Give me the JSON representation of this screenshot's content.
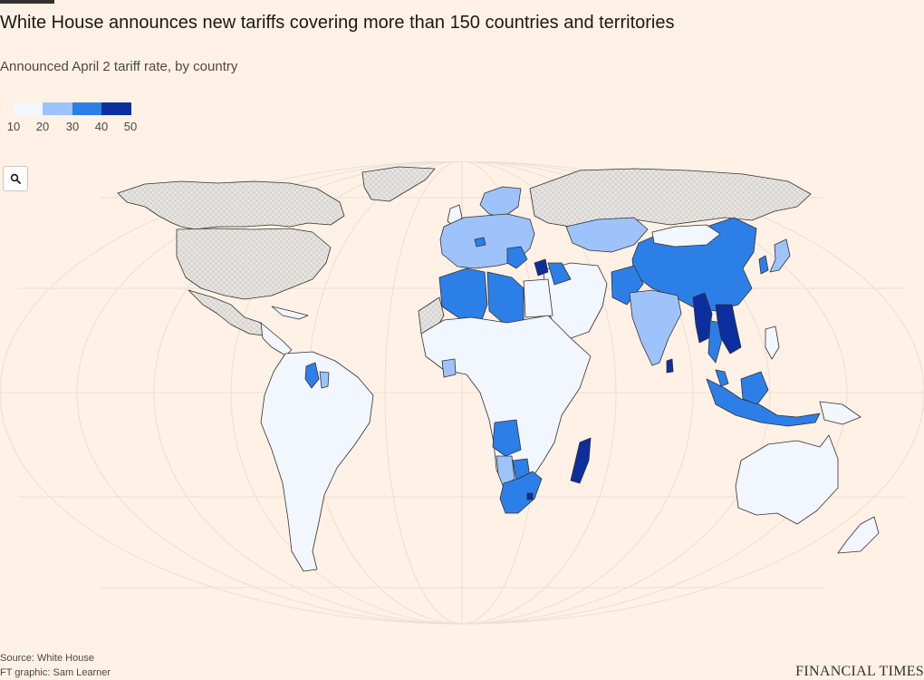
{
  "header": {
    "title": "White House announces new tariffs covering more than 150 countries and territories",
    "subtitle": "Announced April 2 tariff rate, by country"
  },
  "legend": {
    "ticks": [
      "10",
      "20",
      "30",
      "40",
      "50"
    ],
    "colors": [
      "#f2f6fe",
      "#9ec3fa",
      "#2d7fe8",
      "#0c2f9f"
    ]
  },
  "map": {
    "zoom_button_icon": "search-icon",
    "colors": {
      "background": "#fff1e5",
      "ocean": "#fff1e5",
      "no_data_hatch": "#e6e4e2",
      "no_data_dots": "#d6d3cf",
      "border": "#33302e",
      "graticule": "#e9dfd5"
    }
  },
  "chart_data": {
    "type": "choropleth",
    "title": "White House announces new tariffs covering more than 150 countries and territories",
    "subtitle": "Announced April 2 tariff rate, by country",
    "scale": {
      "bins": [
        10,
        20,
        30,
        40,
        50
      ]
    },
    "regions": [
      {
        "name": "United States",
        "value": null
      },
      {
        "name": "Canada",
        "value": null
      },
      {
        "name": "Mexico",
        "value": null
      },
      {
        "name": "Russia",
        "value": null
      },
      {
        "name": "Greenland",
        "value": null
      },
      {
        "name": "South America",
        "value": 10
      },
      {
        "name": "Guyana",
        "value": 38
      },
      {
        "name": "European Union",
        "value": 20
      },
      {
        "name": "United Kingdom",
        "value": 10
      },
      {
        "name": "Switzerland",
        "value": 31
      },
      {
        "name": "Serbia",
        "value": 37
      },
      {
        "name": "Kazakhstan",
        "value": 27
      },
      {
        "name": "China",
        "value": 34
      },
      {
        "name": "Japan",
        "value": 24
      },
      {
        "name": "South Korea",
        "value": 25
      },
      {
        "name": "India",
        "value": 26
      },
      {
        "name": "Pakistan",
        "value": 29
      },
      {
        "name": "Bangladesh",
        "value": 37
      },
      {
        "name": "Sri Lanka",
        "value": 44
      },
      {
        "name": "Myanmar",
        "value": 44
      },
      {
        "name": "Laos",
        "value": 48
      },
      {
        "name": "Vietnam",
        "value": 46
      },
      {
        "name": "Cambodia",
        "value": 49
      },
      {
        "name": "Thailand",
        "value": 36
      },
      {
        "name": "Malaysia",
        "value": 24
      },
      {
        "name": "Indonesia",
        "value": 32
      },
      {
        "name": "Philippines",
        "value": 17
      },
      {
        "name": "Syria",
        "value": 41
      },
      {
        "name": "Iraq",
        "value": 39
      },
      {
        "name": "Jordan",
        "value": 20
      },
      {
        "name": "Algeria",
        "value": 30
      },
      {
        "name": "Libya",
        "value": 31
      },
      {
        "name": "Tunisia",
        "value": 28
      },
      {
        "name": "Côte d'Ivoire",
        "value": 21
      },
      {
        "name": "Angola",
        "value": 32
      },
      {
        "name": "Namibia",
        "value": 21
      },
      {
        "name": "Botswana",
        "value": 37
      },
      {
        "name": "South Africa",
        "value": 30
      },
      {
        "name": "Lesotho",
        "value": 50
      },
      {
        "name": "Madagascar",
        "value": 47
      },
      {
        "name": "Rest of Africa",
        "value": 10
      },
      {
        "name": "Saudi Arabia",
        "value": 10
      },
      {
        "name": "Australia",
        "value": 10
      },
      {
        "name": "New Zealand",
        "value": 10
      },
      {
        "name": "Papua New Guinea",
        "value": 10
      }
    ]
  },
  "footer": {
    "source": "Source: White House",
    "credit": "FT graphic: Sam Learner",
    "brand": "FINANCIAL TIMES"
  }
}
